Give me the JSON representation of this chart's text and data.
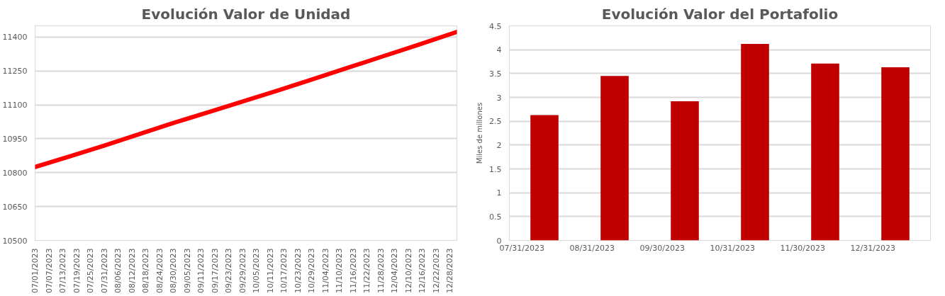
{
  "chart_data": [
    {
      "type": "line",
      "title": "Evolución Valor de Unidad",
      "x": [
        "2023-07-01",
        "2023-07-16",
        "2023-07-31",
        "2023-08-15",
        "2023-08-30",
        "2023-09-14",
        "2023-09-29",
        "2023-10-14",
        "2023-10-29",
        "2023-11-13",
        "2023-11-28",
        "2023-12-13",
        "2023-12-31"
      ],
      "series": [
        {
          "color": "#ff0000",
          "values": [
            10825,
            10872,
            10920,
            10970,
            11020,
            11067,
            11115,
            11163,
            11212,
            11262,
            11312,
            11362,
            11423
          ]
        }
      ],
      "xlim": [
        "2023-07-01",
        "2023-12-31"
      ],
      "xticks": [
        {
          "value": "2023-07-01",
          "label": "07/01/2023"
        },
        {
          "value": "2023-07-07",
          "label": "07/07/2023"
        },
        {
          "value": "2023-07-13",
          "label": "07/13/2023"
        },
        {
          "value": "2023-07-19",
          "label": "07/19/2023"
        },
        {
          "value": "2023-07-25",
          "label": "07/25/2023"
        },
        {
          "value": "2023-07-31",
          "label": "07/31/2023"
        },
        {
          "value": "2023-08-06",
          "label": "08/06/2023"
        },
        {
          "value": "2023-08-12",
          "label": "08/12/2023"
        },
        {
          "value": "2023-08-18",
          "label": "08/18/2023"
        },
        {
          "value": "2023-08-24",
          "label": "08/24/2023"
        },
        {
          "value": "2023-08-30",
          "label": "08/30/2023"
        },
        {
          "value": "2023-09-05",
          "label": "09/05/2023"
        },
        {
          "value": "2023-09-11",
          "label": "09/11/2023"
        },
        {
          "value": "2023-09-17",
          "label": "09/17/2023"
        },
        {
          "value": "2023-09-23",
          "label": "09/23/2023"
        },
        {
          "value": "2023-09-29",
          "label": "09/29/2023"
        },
        {
          "value": "2023-10-05",
          "label": "10/05/2023"
        },
        {
          "value": "2023-10-11",
          "label": "10/11/2023"
        },
        {
          "value": "2023-10-17",
          "label": "10/17/2023"
        },
        {
          "value": "2023-10-23",
          "label": "10/23/2023"
        },
        {
          "value": "2023-10-29",
          "label": "10/29/2023"
        },
        {
          "value": "2023-11-04",
          "label": "11/04/2023"
        },
        {
          "value": "2023-11-10",
          "label": "11/10/2023"
        },
        {
          "value": "2023-11-16",
          "label": "11/16/2023"
        },
        {
          "value": "2023-11-22",
          "label": "11/22/2023"
        },
        {
          "value": "2023-11-28",
          "label": "11/28/2023"
        },
        {
          "value": "2023-12-04",
          "label": "12/04/2023"
        },
        {
          "value": "2023-12-10",
          "label": "12/10/2023"
        },
        {
          "value": "2023-12-16",
          "label": "12/16/2023"
        },
        {
          "value": "2023-12-22",
          "label": "12/22/2023"
        },
        {
          "value": "2023-12-28",
          "label": "12/28/2023"
        }
      ],
      "ylim": [
        10500,
        11450
      ],
      "yticks": [
        10500,
        10650,
        10800,
        10950,
        11100,
        11250,
        11400
      ],
      "grid": "y"
    },
    {
      "type": "bar",
      "title": "Evolución Valor del Portafolio",
      "ylabel": "Miles de millones",
      "categories": [
        "07/31/2023",
        "08/31/2023",
        "09/30/2023",
        "10/31/2023",
        "11/30/2023",
        "12/31/2023"
      ],
      "series": [
        {
          "color": "#c00000",
          "values": [
            2.63,
            3.45,
            2.92,
            4.12,
            3.71,
            3.63
          ]
        }
      ],
      "ylim": [
        0,
        4.5
      ],
      "yticks": [
        0,
        0.5,
        1,
        1.5,
        2,
        2.5,
        3,
        3.5,
        4,
        4.5
      ],
      "grid": "y"
    }
  ]
}
